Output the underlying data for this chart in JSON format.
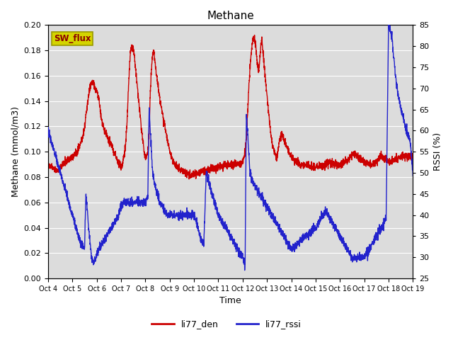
{
  "title": "Methane",
  "ylabel_left": "Methane (mmol/m3)",
  "ylabel_right": "RSSI (%)",
  "xlabel": "Time",
  "ylim_left": [
    0.0,
    0.2
  ],
  "ylim_right": [
    25,
    85
  ],
  "yticks_left": [
    0.0,
    0.02,
    0.04,
    0.06,
    0.08,
    0.1,
    0.12,
    0.14,
    0.16,
    0.18,
    0.2
  ],
  "yticks_right": [
    25,
    30,
    35,
    40,
    45,
    50,
    55,
    60,
    65,
    70,
    75,
    80,
    85
  ],
  "xtick_labels": [
    "Oct 4",
    "Oct 5",
    "Oct 6",
    "Oct 7",
    "Oct 8",
    "Oct 9",
    "Oct 10",
    "Oct 11",
    "Oct 12",
    "Oct 13",
    "Oct 14",
    "Oct 15",
    "Oct 16",
    "Oct 17",
    "Oct 18",
    "Oct 19"
  ],
  "color_red": "#cc0000",
  "color_blue": "#2222cc",
  "background_color": "#dcdcdc",
  "legend_label_red": "li77_den",
  "legend_label_blue": "li77_rssi",
  "sw_flux_box_facecolor": "#d4d400",
  "sw_flux_box_edgecolor": "#999900",
  "sw_flux_text_color": "#8b0000",
  "linewidth": 1.0,
  "red_t": [
    0.0,
    0.1,
    0.2,
    0.3,
    0.4,
    0.5,
    0.6,
    0.7,
    0.8,
    0.9,
    1.0,
    1.1,
    1.2,
    1.3,
    1.4,
    1.5,
    1.6,
    1.7,
    1.8,
    1.9,
    2.0,
    2.05,
    2.1,
    2.15,
    2.2,
    2.25,
    2.3,
    2.35,
    2.4,
    2.45,
    2.5,
    2.55,
    2.6,
    2.65,
    2.7,
    2.75,
    2.8,
    2.85,
    2.9,
    2.95,
    3.0,
    3.05,
    3.1,
    3.15,
    3.2,
    3.25,
    3.3,
    3.35,
    3.4,
    3.45,
    3.5,
    3.55,
    3.6,
    3.65,
    3.7,
    3.75,
    3.8,
    3.85,
    3.9,
    3.95,
    4.0,
    4.05,
    4.1,
    4.15,
    4.2,
    4.25,
    4.3,
    4.35,
    4.4,
    4.5,
    4.6,
    4.7,
    4.8,
    4.9,
    5.0,
    5.1,
    5.2,
    5.3,
    5.4,
    5.5,
    5.6,
    5.7,
    5.8,
    5.9,
    6.0,
    6.1,
    6.2,
    6.3,
    6.4,
    6.5,
    6.6,
    6.7,
    6.8,
    6.9,
    7.0,
    7.1,
    7.2,
    7.3,
    7.4,
    7.5,
    7.6,
    7.7,
    7.8,
    7.9,
    8.0,
    8.05,
    8.1,
    8.15,
    8.2,
    8.25,
    8.3,
    8.35,
    8.4,
    8.45,
    8.5,
    8.55,
    8.6,
    8.65,
    8.7,
    8.75,
    8.8,
    8.85,
    8.9,
    8.95,
    9.0,
    9.05,
    9.1,
    9.15,
    9.2,
    9.3,
    9.4,
    9.5,
    9.6,
    9.7,
    9.8,
    9.9,
    10.0,
    10.2,
    10.4,
    10.6,
    10.8,
    11.0,
    11.2,
    11.4,
    11.6,
    11.8,
    12.0,
    12.1,
    12.2,
    12.3,
    12.4,
    12.5,
    12.6,
    12.7,
    12.8,
    12.9,
    13.0,
    13.1,
    13.2,
    13.3,
    13.4,
    13.5,
    13.6,
    13.7,
    13.8,
    13.9,
    14.0,
    14.2,
    14.4,
    14.6,
    14.8,
    15.0
  ],
  "red_v": [
    0.09,
    0.088,
    0.087,
    0.086,
    0.085,
    0.088,
    0.09,
    0.092,
    0.093,
    0.094,
    0.096,
    0.098,
    0.1,
    0.105,
    0.11,
    0.12,
    0.135,
    0.15,
    0.155,
    0.152,
    0.148,
    0.145,
    0.14,
    0.132,
    0.125,
    0.12,
    0.118,
    0.115,
    0.113,
    0.111,
    0.109,
    0.108,
    0.105,
    0.103,
    0.1,
    0.098,
    0.096,
    0.093,
    0.091,
    0.09,
    0.088,
    0.09,
    0.095,
    0.1,
    0.11,
    0.125,
    0.15,
    0.17,
    0.18,
    0.183,
    0.182,
    0.175,
    0.165,
    0.155,
    0.145,
    0.135,
    0.125,
    0.115,
    0.108,
    0.1,
    0.095,
    0.097,
    0.1,
    0.115,
    0.145,
    0.165,
    0.178,
    0.18,
    0.17,
    0.155,
    0.14,
    0.13,
    0.12,
    0.11,
    0.1,
    0.095,
    0.09,
    0.088,
    0.086,
    0.085,
    0.084,
    0.083,
    0.082,
    0.082,
    0.082,
    0.083,
    0.083,
    0.084,
    0.085,
    0.085,
    0.086,
    0.086,
    0.087,
    0.087,
    0.088,
    0.088,
    0.089,
    0.089,
    0.09,
    0.09,
    0.09,
    0.091,
    0.091,
    0.091,
    0.092,
    0.095,
    0.1,
    0.11,
    0.13,
    0.15,
    0.165,
    0.178,
    0.187,
    0.19,
    0.188,
    0.182,
    0.17,
    0.162,
    0.172,
    0.185,
    0.188,
    0.175,
    0.165,
    0.155,
    0.145,
    0.135,
    0.125,
    0.115,
    0.108,
    0.1,
    0.095,
    0.108,
    0.115,
    0.11,
    0.105,
    0.1,
    0.096,
    0.092,
    0.09,
    0.089,
    0.088,
    0.088,
    0.089,
    0.09,
    0.091,
    0.09,
    0.09,
    0.091,
    0.092,
    0.093,
    0.095,
    0.097,
    0.098,
    0.097,
    0.095,
    0.093,
    0.092,
    0.091,
    0.09,
    0.09,
    0.091,
    0.092,
    0.095,
    0.097,
    0.095,
    0.093,
    0.092,
    0.093,
    0.095,
    0.097,
    0.096,
    0.095
  ],
  "blue_t": [
    0.0,
    0.1,
    0.2,
    0.3,
    0.4,
    0.5,
    0.6,
    0.7,
    0.8,
    0.9,
    1.0,
    1.1,
    1.2,
    1.3,
    1.4,
    1.5,
    1.55,
    1.6,
    1.65,
    1.7,
    1.75,
    1.8,
    1.85,
    1.9,
    1.95,
    2.0,
    2.1,
    2.2,
    2.3,
    2.4,
    2.5,
    2.6,
    2.7,
    2.8,
    2.9,
    3.0,
    3.1,
    3.2,
    3.3,
    3.4,
    3.5,
    3.6,
    3.7,
    3.8,
    3.9,
    4.0,
    4.05,
    4.1,
    4.15,
    4.2,
    4.25,
    4.3,
    4.4,
    4.5,
    4.6,
    4.7,
    4.8,
    4.9,
    5.0,
    5.2,
    5.4,
    5.6,
    5.8,
    6.0,
    6.05,
    6.1,
    6.15,
    6.2,
    6.25,
    6.3,
    6.4,
    6.5,
    6.6,
    6.7,
    6.8,
    6.9,
    7.0,
    7.1,
    7.2,
    7.3,
    7.4,
    7.5,
    7.6,
    7.7,
    7.8,
    7.9,
    8.0,
    8.05,
    8.1,
    8.15,
    8.2,
    8.25,
    8.3,
    8.4,
    8.5,
    8.6,
    8.7,
    8.8,
    8.9,
    9.0,
    9.1,
    9.2,
    9.3,
    9.4,
    9.5,
    9.6,
    9.7,
    9.8,
    9.9,
    10.0,
    10.2,
    10.4,
    10.6,
    10.8,
    11.0,
    11.1,
    11.2,
    11.3,
    11.4,
    11.5,
    11.6,
    11.7,
    11.8,
    11.9,
    12.0,
    12.1,
    12.2,
    12.3,
    12.4,
    12.5,
    12.6,
    12.7,
    12.8,
    12.9,
    13.0,
    13.1,
    13.2,
    13.3,
    13.4,
    13.5,
    13.6,
    13.7,
    13.8,
    13.9,
    14.0,
    14.05,
    14.1,
    14.15,
    14.2,
    14.3,
    14.4,
    14.5,
    14.6,
    14.7,
    14.8,
    14.9,
    15.0
  ],
  "blue_v": [
    60,
    58,
    56,
    54,
    52,
    50,
    48,
    46,
    44,
    42,
    40,
    38,
    36,
    34,
    33,
    32,
    45,
    42,
    38,
    35,
    32,
    30,
    29,
    29,
    30,
    31,
    32,
    33,
    34,
    35,
    36,
    37,
    38,
    39,
    40,
    42,
    43,
    43,
    43,
    43,
    43,
    43,
    43,
    43,
    43,
    43,
    44,
    44,
    65,
    60,
    55,
    50,
    47,
    45,
    43,
    42,
    41,
    40,
    40,
    40,
    40,
    40,
    40,
    40,
    39,
    38,
    37,
    36,
    35,
    34,
    33,
    50,
    48,
    46,
    44,
    42,
    40,
    39,
    38,
    37,
    36,
    35,
    34,
    33,
    32,
    31,
    30,
    29,
    28,
    65,
    60,
    55,
    50,
    48,
    47,
    46,
    45,
    44,
    43,
    42,
    41,
    40,
    39,
    38,
    37,
    36,
    35,
    34,
    33,
    32,
    33,
    34,
    35,
    36,
    37,
    38,
    39,
    40,
    41,
    40,
    39,
    38,
    37,
    36,
    35,
    34,
    33,
    32,
    31,
    30,
    30,
    30,
    30,
    30,
    30,
    31,
    32,
    33,
    34,
    35,
    36,
    37,
    38,
    39,
    85,
    84,
    83,
    82,
    78,
    72,
    68,
    65,
    63,
    61,
    59,
    57,
    50
  ]
}
